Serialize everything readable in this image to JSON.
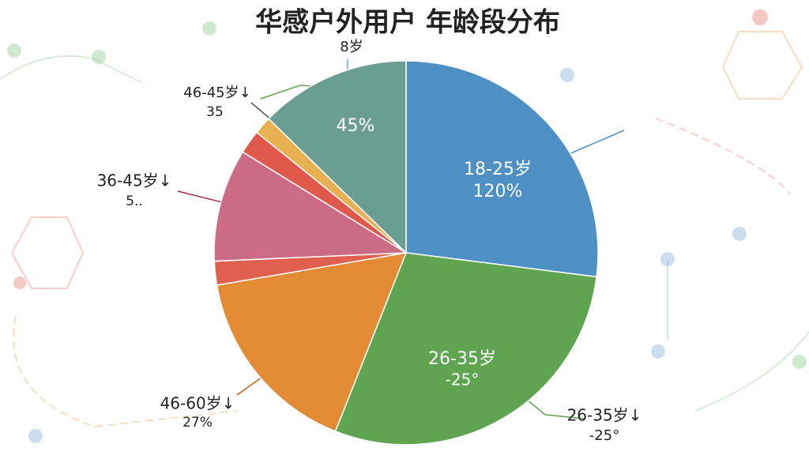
{
  "chart_data": {
    "type": "pie",
    "title": "华感户外用户 年龄段分布",
    "values": [
      27,
      29,
      16.3,
      2,
      9.5,
      2,
      1.5,
      12.7
    ],
    "colors": [
      "#4e8fc4",
      "#5fa450",
      "#e38a35",
      "#e0604f",
      "#cc6b85",
      "#e0584a",
      "#e8b050",
      "#6b9e93"
    ],
    "annotations": [
      "18-25岁",
      "120%",
      "26-35岁",
      "-25°",
      "45%",
      "8岁",
      "46-45岁↓",
      "35",
      "36-45岁↓",
      "5..",
      "46-60岁↓",
      "27%",
      "26-35岁↓",
      "-25°"
    ]
  }
}
